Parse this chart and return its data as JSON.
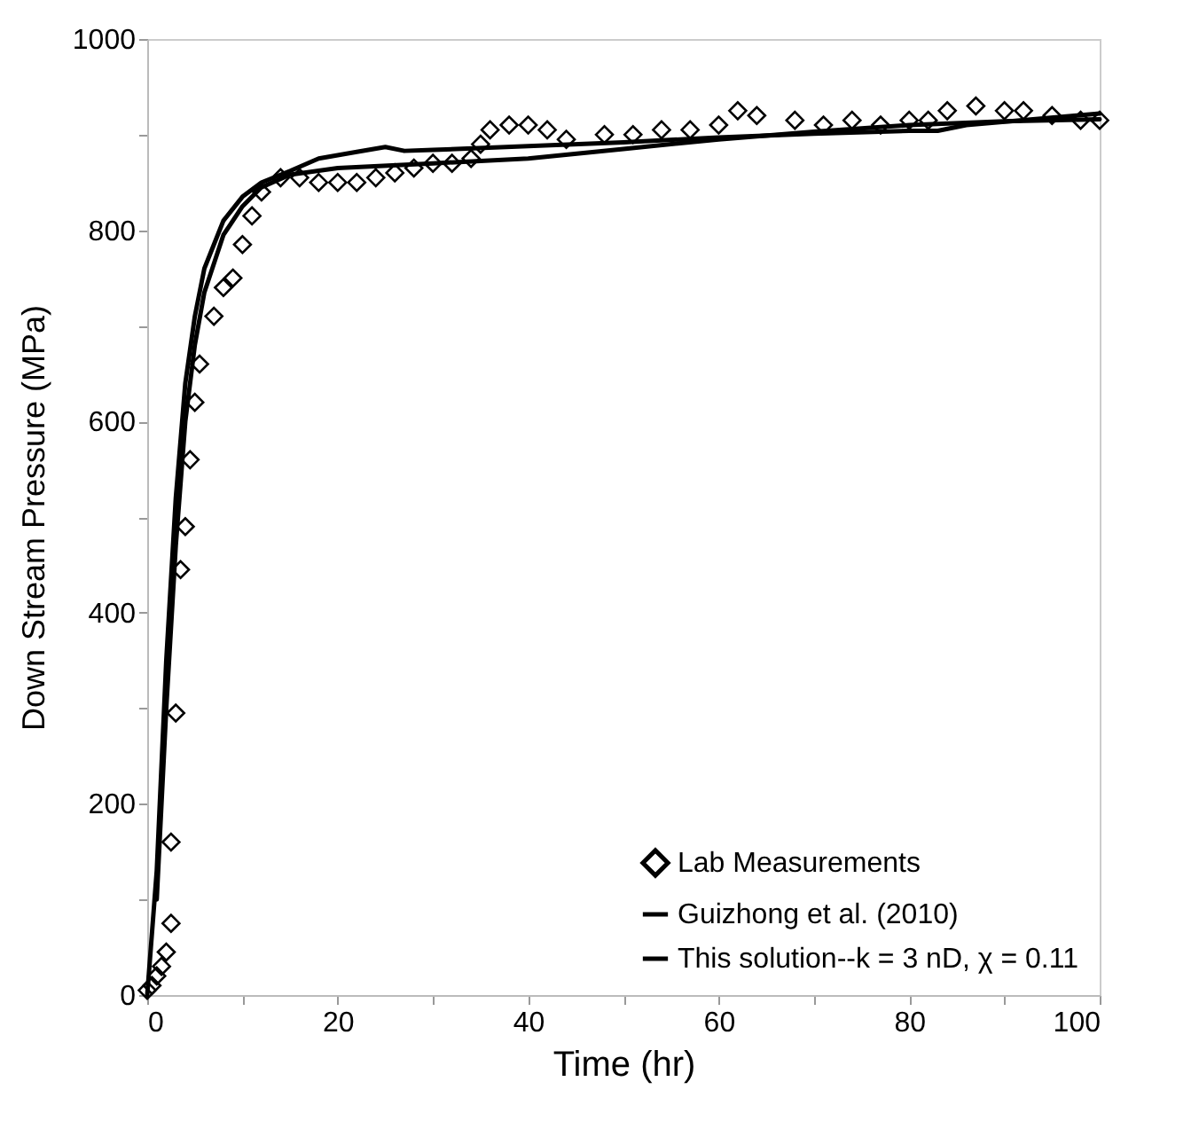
{
  "chart_data": {
    "type": "line",
    "xlabel": "Time (hr)",
    "ylabel": "Down Stream Pressure (MPa)",
    "xlim": [
      0,
      100
    ],
    "ylim": [
      0,
      1000
    ],
    "xticks": [
      0,
      {
        "value": 10,
        "label": null
      },
      20,
      {
        "value": 30,
        "label": null
      },
      40,
      {
        "value": 50,
        "label": null
      },
      60,
      {
        "value": 70,
        "label": null
      },
      80,
      {
        "value": 90,
        "label": null
      },
      100
    ],
    "yticks": [
      0,
      {
        "value": 100,
        "label": null
      },
      200,
      {
        "value": 300,
        "label": null
      },
      400,
      {
        "value": 500,
        "label": null
      },
      600,
      {
        "value": 700,
        "label": null
      },
      800,
      {
        "value": 900,
        "label": null
      },
      {
        "value": 1000,
        "label": "1000"
      }
    ],
    "grid": false,
    "legend": "bottom right",
    "series": [
      {
        "name": "Lab Measurements",
        "type": "scatter",
        "marker": "diamond",
        "color": "#000000",
        "x": [
          0,
          0.5,
          1,
          1.5,
          2,
          2.5,
          2.5,
          3,
          3.5,
          4,
          4.5,
          5,
          5.5,
          7,
          8,
          9,
          10,
          11,
          12,
          14,
          16,
          18,
          20,
          22,
          24,
          26,
          28,
          30,
          32,
          34,
          35,
          36,
          38,
          40,
          42,
          44,
          48,
          51,
          54,
          57,
          60,
          62,
          64,
          68,
          71,
          74,
          77,
          80,
          82,
          84,
          87,
          90,
          92,
          95,
          98,
          100
        ],
        "values": [
          5,
          10,
          20,
          30,
          45,
          75,
          160,
          295,
          445,
          490,
          560,
          620,
          660,
          710,
          740,
          750,
          785,
          815,
          840,
          855,
          855,
          850,
          850,
          850,
          855,
          860,
          865,
          870,
          870,
          875,
          890,
          905,
          910,
          910,
          905,
          895,
          900,
          900,
          905,
          905,
          910,
          925,
          920,
          915,
          910,
          915,
          910,
          915,
          915,
          925,
          930,
          925,
          925,
          920,
          915,
          915
        ]
      },
      {
        "name": "Guizhong et al. (2010)",
        "color": "#000000",
        "x": [
          0,
          1,
          2,
          3,
          4,
          5,
          6,
          8,
          10,
          12,
          15,
          18,
          22,
          25,
          27,
          30,
          40,
          50,
          60,
          70,
          80,
          83,
          86,
          100
        ],
        "values": [
          0,
          130,
          350,
          520,
          640,
          710,
          760,
          810,
          835,
          850,
          862,
          875,
          882,
          887,
          883,
          884,
          888,
          892,
          897,
          901,
          904,
          904,
          910,
          922
        ]
      },
      {
        "name": "This solution--k = 3 nD, χ = 0.11",
        "color": "#000000",
        "x": [
          1,
          2,
          3,
          4,
          5,
          6,
          8,
          10,
          12,
          15,
          20,
          30,
          40,
          50,
          60,
          70,
          80,
          90,
          100
        ],
        "values": [
          100,
          300,
          470,
          600,
          680,
          735,
          795,
          825,
          845,
          858,
          865,
          870,
          875,
          885,
          895,
          903,
          910,
          914,
          916
        ]
      }
    ]
  }
}
